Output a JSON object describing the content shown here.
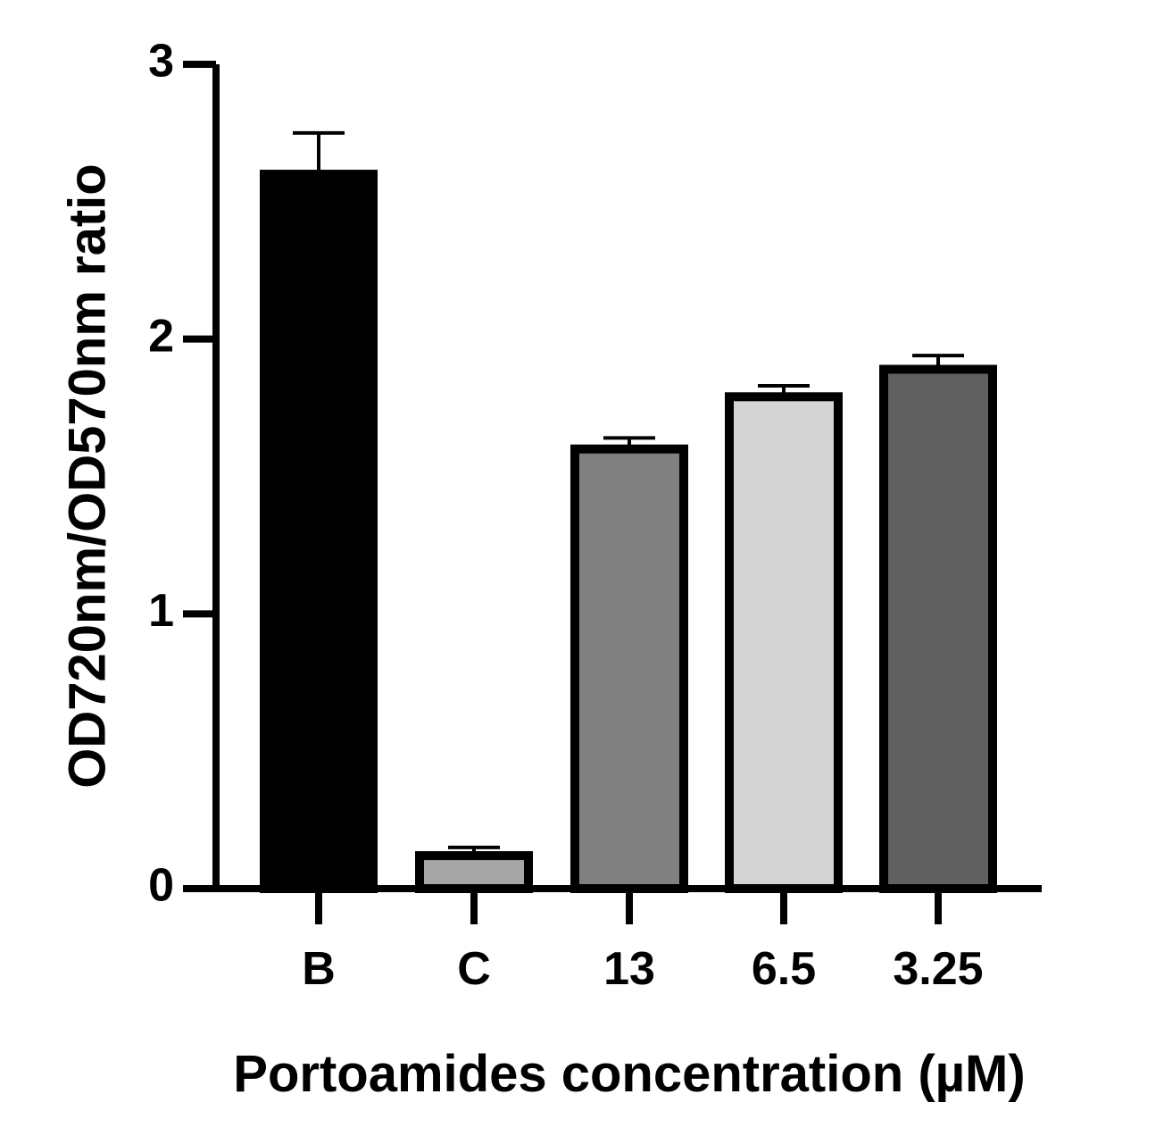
{
  "chart_data": {
    "type": "bar",
    "xlabel": "Portoamides concentration (µM)",
    "ylabel": "OD720nm/OD570nm ratio",
    "ylim": [
      0,
      3
    ],
    "yticks": [
      "0",
      "1",
      "2",
      "3"
    ],
    "categories": [
      "B",
      "C",
      "13",
      "6.5",
      "3.25"
    ],
    "values": [
      2.6,
      0.12,
      1.6,
      1.79,
      1.89
    ],
    "errors": [
      0.15,
      0.03,
      0.04,
      0.04,
      0.05
    ],
    "colors": [
      "#000000",
      "#a6a6a6",
      "#808080",
      "#d4d4d4",
      "#606060"
    ],
    "grid": false,
    "legend": "none"
  }
}
